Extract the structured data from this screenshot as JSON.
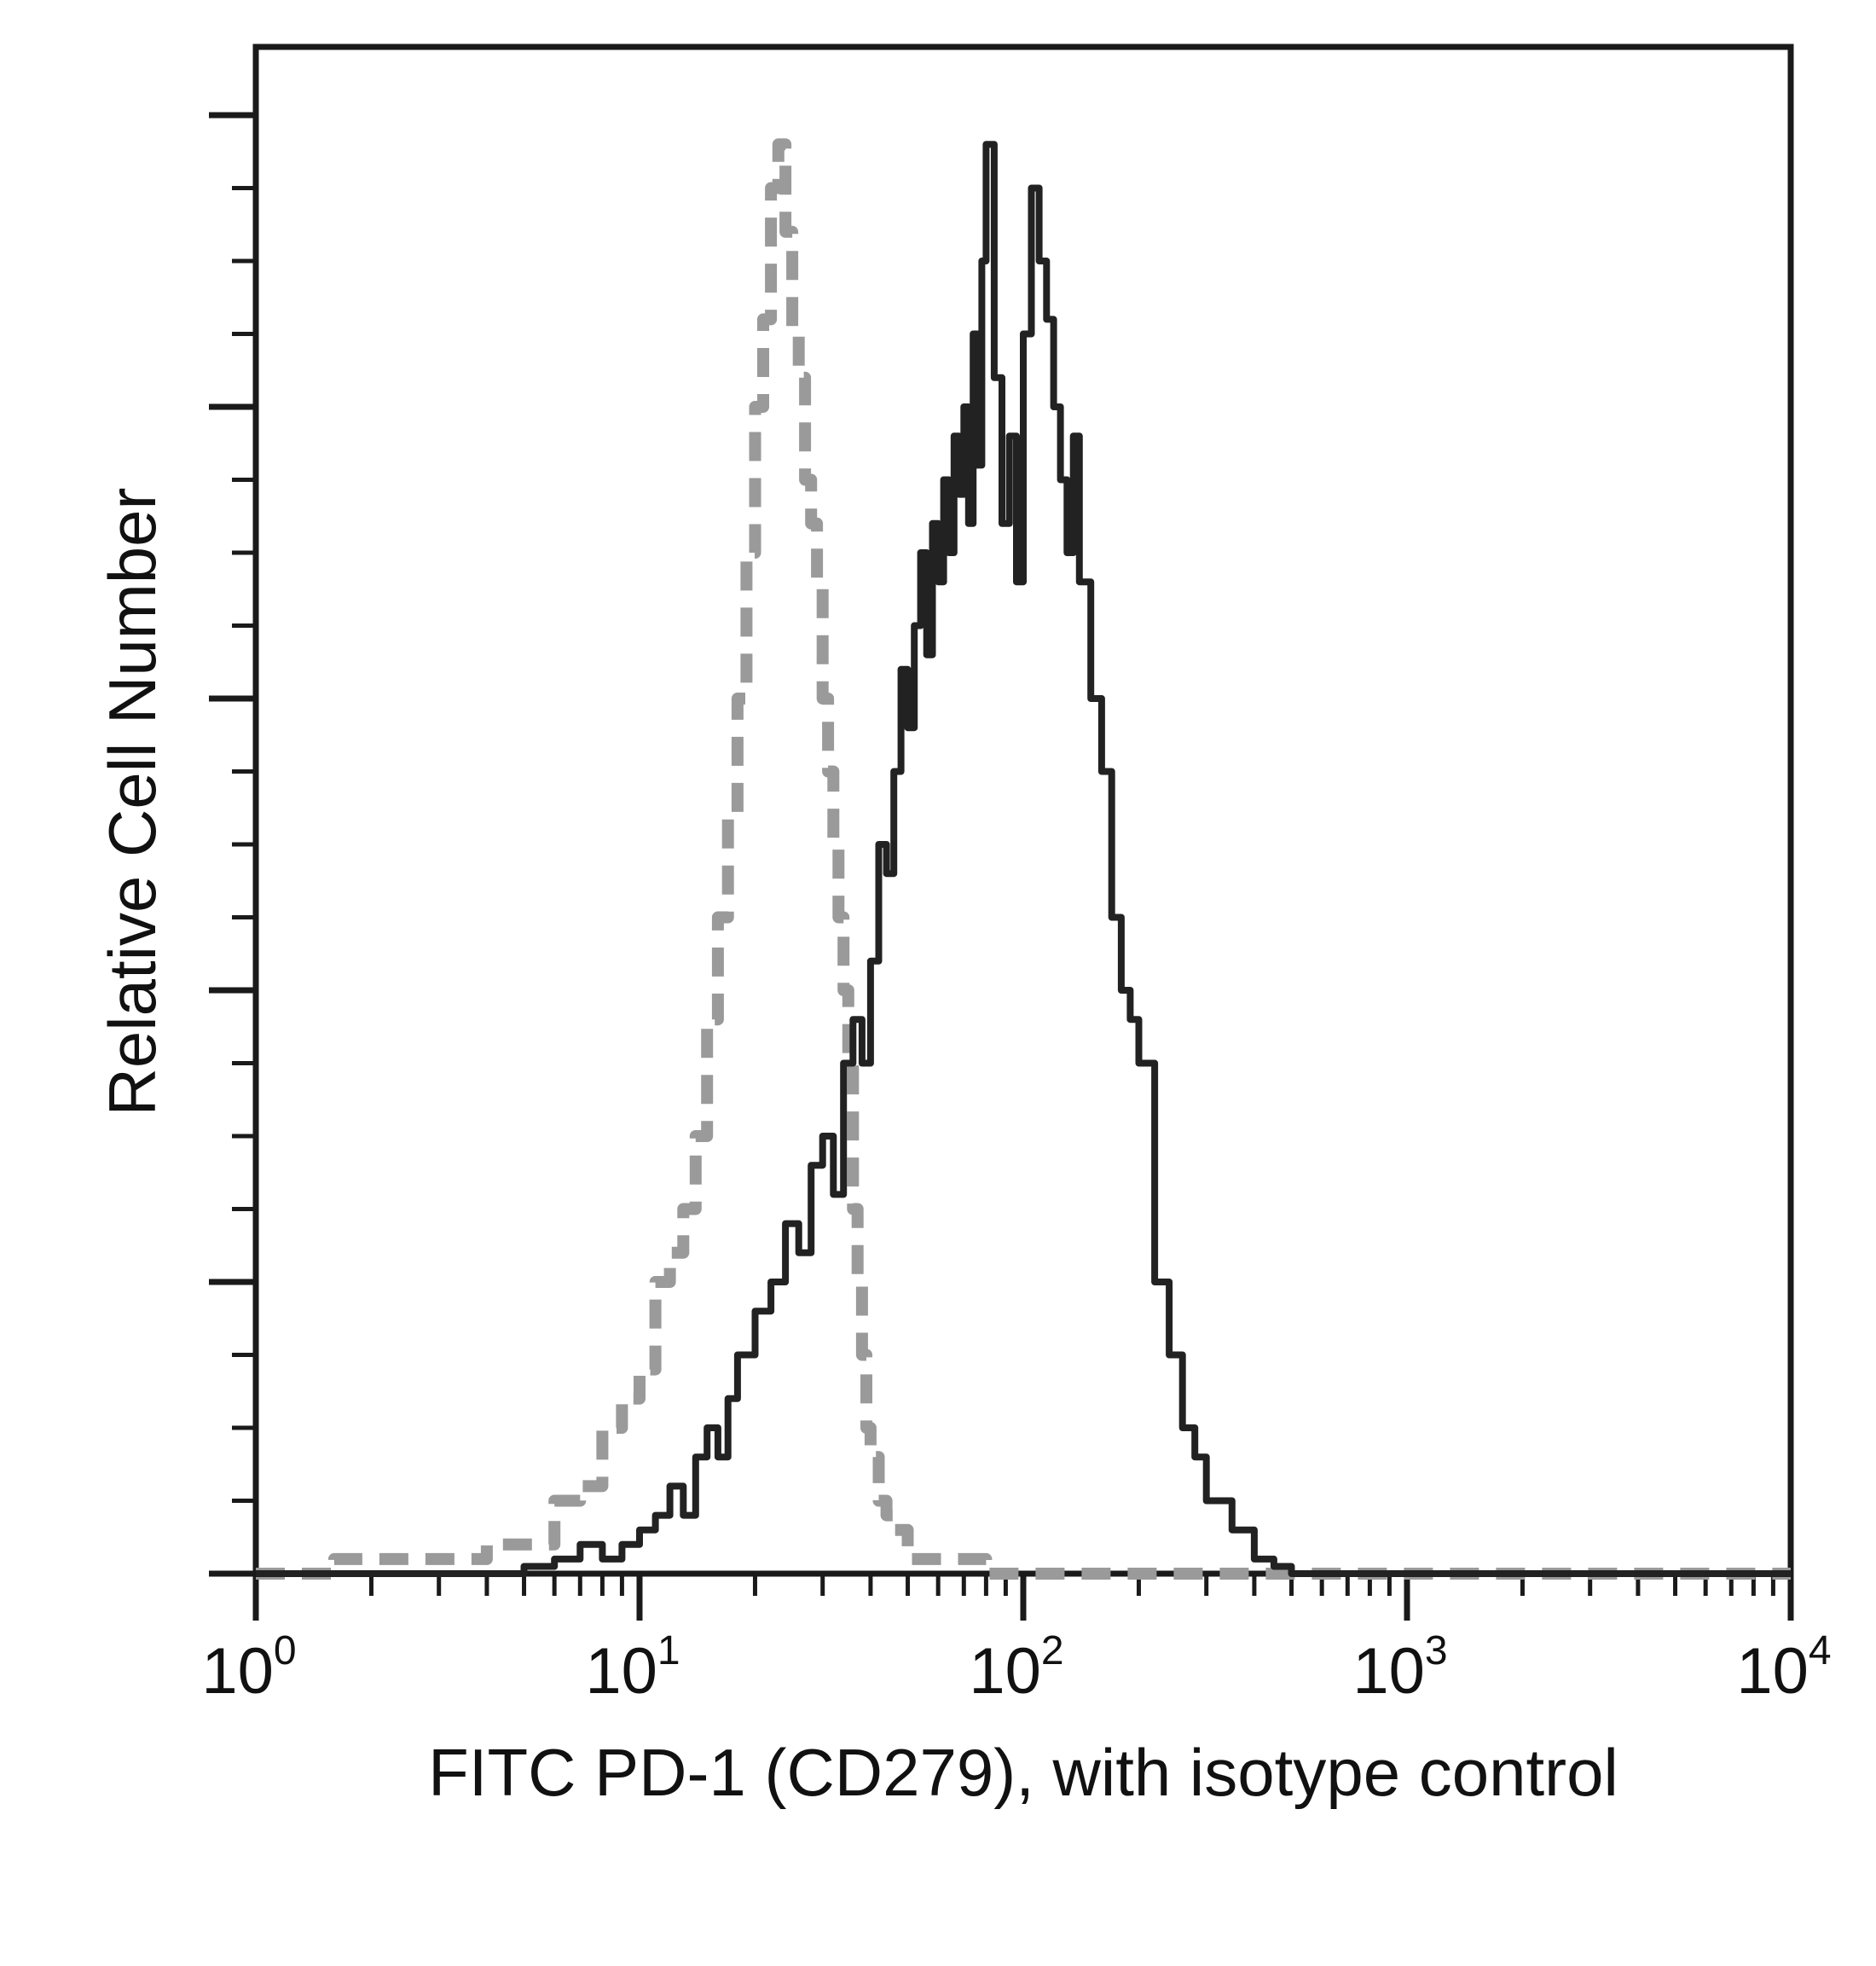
{
  "chart_data": {
    "type": "histogram",
    "title": "",
    "xlabel": "FITC PD-1 (CD279), with isotype control",
    "ylabel": "Relative Cell Number",
    "x_scale": "log",
    "xlim": [
      1,
      10000
    ],
    "ylim": [
      0,
      1.0
    ],
    "grid": false,
    "legend": "none",
    "x_ticks": [
      {
        "base": "10",
        "exp": "0",
        "value": 1
      },
      {
        "base": "10",
        "exp": "1",
        "value": 10
      },
      {
        "base": "10",
        "exp": "2",
        "value": 100
      },
      {
        "base": "10",
        "exp": "3",
        "value": 1000
      },
      {
        "base": "10",
        "exp": "4",
        "value": 10000
      }
    ],
    "series": [
      {
        "style": "dashed",
        "color": "#9a9a9a",
        "x": [
          1,
          1.6,
          2,
          3,
          4,
          5,
          6,
          7,
          8,
          9,
          10,
          11,
          12,
          13,
          14,
          15,
          16,
          17,
          18,
          19,
          20,
          21,
          22,
          23,
          24,
          25,
          26,
          27,
          28,
          29,
          30,
          31,
          32,
          33,
          34,
          35,
          36,
          37,
          38,
          39,
          40,
          42,
          44,
          46,
          50,
          60,
          80,
          100,
          200,
          500,
          1000,
          10000
        ],
        "values": [
          0.0,
          0.01,
          0.01,
          0.01,
          0.02,
          0.02,
          0.05,
          0.06,
          0.1,
          0.12,
          0.14,
          0.2,
          0.22,
          0.25,
          0.3,
          0.38,
          0.45,
          0.52,
          0.6,
          0.7,
          0.8,
          0.86,
          0.95,
          0.98,
          0.92,
          0.85,
          0.82,
          0.75,
          0.72,
          0.68,
          0.6,
          0.55,
          0.5,
          0.45,
          0.4,
          0.35,
          0.25,
          0.2,
          0.15,
          0.1,
          0.08,
          0.05,
          0.04,
          0.03,
          0.01,
          0.01,
          0.0,
          0.0,
          0.0,
          0.0,
          0.0,
          0.0
        ]
      },
      {
        "style": "solid",
        "color": "#222222",
        "x": [
          1,
          4,
          5,
          6,
          7,
          8,
          9,
          10,
          11,
          12,
          13,
          14,
          15,
          16,
          17,
          18,
          20,
          22,
          24,
          26,
          28,
          30,
          32,
          34,
          36,
          38,
          40,
          42,
          44,
          46,
          48,
          50,
          52,
          54,
          56,
          58,
          60,
          62,
          64,
          66,
          68,
          70,
          72,
          74,
          76,
          78,
          80,
          84,
          88,
          92,
          96,
          100,
          105,
          110,
          115,
          120,
          125,
          130,
          135,
          140,
          150,
          160,
          170,
          180,
          190,
          200,
          220,
          240,
          260,
          280,
          300,
          350,
          400,
          450,
          500,
          600,
          800,
          1000,
          10000
        ],
        "values": [
          0.0,
          0.0,
          0.005,
          0.01,
          0.02,
          0.01,
          0.02,
          0.03,
          0.04,
          0.06,
          0.04,
          0.08,
          0.1,
          0.08,
          0.12,
          0.15,
          0.18,
          0.2,
          0.24,
          0.22,
          0.28,
          0.3,
          0.26,
          0.35,
          0.38,
          0.35,
          0.42,
          0.5,
          0.48,
          0.55,
          0.62,
          0.58,
          0.65,
          0.7,
          0.63,
          0.72,
          0.68,
          0.75,
          0.7,
          0.78,
          0.74,
          0.8,
          0.72,
          0.85,
          0.76,
          0.9,
          0.98,
          0.82,
          0.72,
          0.78,
          0.68,
          0.85,
          0.95,
          0.9,
          0.86,
          0.8,
          0.75,
          0.7,
          0.78,
          0.68,
          0.6,
          0.55,
          0.45,
          0.4,
          0.38,
          0.35,
          0.2,
          0.15,
          0.1,
          0.08,
          0.05,
          0.03,
          0.01,
          0.005,
          0.0,
          0.0,
          0.0,
          0.0,
          0.0
        ]
      }
    ]
  }
}
